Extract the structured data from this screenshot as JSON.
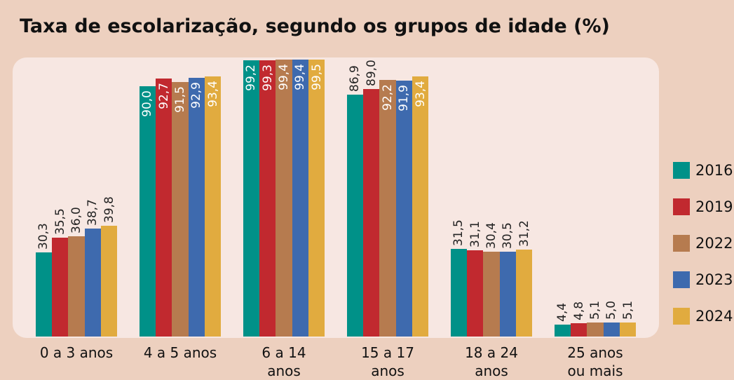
{
  "chart_data": {
    "type": "bar",
    "title": "Taxa de escolarização, segundo os grupos de idade (%)",
    "categories": [
      "0 a 3 anos",
      "4 a 5 anos",
      "6 a 14 anos",
      "15 a 17 anos",
      "18 a 24 anos",
      "25 anos ou mais"
    ],
    "ylim": [
      0,
      100
    ],
    "legend": "right",
    "series": [
      {
        "name": "2016",
        "color": "#009188",
        "values": [
          30.3,
          90.0,
          99.2,
          86.9,
          31.5,
          4.4
        ],
        "value_labels": [
          "30,3",
          "90,0",
          "99,2",
          "86,9",
          "31,5",
          "4,4"
        ]
      },
      {
        "name": "2019",
        "color": "#c1292f",
        "values": [
          35.5,
          92.7,
          99.3,
          89.0,
          31.1,
          4.8
        ],
        "value_labels": [
          "35,5",
          "92,7",
          "99,3",
          "89,0",
          "31,1",
          "4,8"
        ]
      },
      {
        "name": "2022",
        "color": "#b67b4f",
        "values": [
          36.0,
          91.5,
          99.4,
          92.2,
          30.4,
          5.1
        ],
        "value_labels": [
          "36,0",
          "91,5",
          "99,4",
          "92,2",
          "30,4",
          "5,1"
        ]
      },
      {
        "name": "2023",
        "color": "#3e6aae",
        "values": [
          38.7,
          92.9,
          99.4,
          91.9,
          30.5,
          5.0
        ],
        "value_labels": [
          "38,7",
          "92,9",
          "99,4",
          "91,9",
          "30,5",
          "5,0"
        ]
      },
      {
        "name": "2024",
        "color": "#e1ab3f",
        "values": [
          39.8,
          93.4,
          99.5,
          93.4,
          31.2,
          5.1
        ],
        "value_labels": [
          "39,8",
          "93,4",
          "99,5",
          "93,4",
          "31,2",
          "5,1"
        ]
      }
    ]
  }
}
